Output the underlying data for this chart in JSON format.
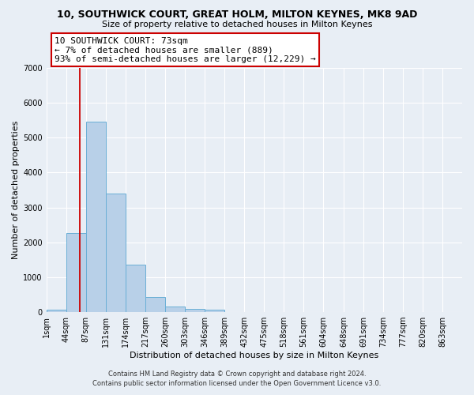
{
  "title_line1": "10, SOUTHWICK COURT, GREAT HOLM, MILTON KEYNES, MK8 9AD",
  "title_line2": "Size of property relative to detached houses in Milton Keynes",
  "xlabel": "Distribution of detached houses by size in Milton Keynes",
  "ylabel": "Number of detached properties",
  "bin_labels": [
    "1sqm",
    "44sqm",
    "87sqm",
    "131sqm",
    "174sqm",
    "217sqm",
    "260sqm",
    "303sqm",
    "346sqm",
    "389sqm",
    "432sqm",
    "475sqm",
    "518sqm",
    "561sqm",
    "604sqm",
    "648sqm",
    "691sqm",
    "734sqm",
    "777sqm",
    "820sqm",
    "863sqm"
  ],
  "bin_edges": [
    1,
    44,
    87,
    131,
    174,
    217,
    260,
    303,
    346,
    389,
    432,
    475,
    518,
    561,
    604,
    648,
    691,
    734,
    777,
    820,
    863
  ],
  "bar_values": [
    70,
    2270,
    5460,
    3400,
    1360,
    440,
    170,
    100,
    60,
    0,
    0,
    0,
    0,
    0,
    0,
    0,
    0,
    0,
    0,
    0
  ],
  "bar_color": "#b8d0e8",
  "bar_edge_color": "#6aafd6",
  "property_line_x": 73,
  "property_line_color": "#cc0000",
  "annotation_text": "10 SOUTHWICK COURT: 73sqm\n← 7% of detached houses are smaller (889)\n93% of semi-detached houses are larger (12,229) →",
  "annotation_box_color": "#ffffff",
  "annotation_box_edge": "#cc0000",
  "ylim": [
    0,
    7000
  ],
  "yticks": [
    0,
    1000,
    2000,
    3000,
    4000,
    5000,
    6000,
    7000
  ],
  "footer_line1": "Contains HM Land Registry data © Crown copyright and database right 2024.",
  "footer_line2": "Contains public sector information licensed under the Open Government Licence v3.0.",
  "bg_color": "#e8eef5",
  "plot_bg_color": "#e8eef5",
  "grid_color": "#ffffff",
  "title1_fontsize": 9,
  "title2_fontsize": 8,
  "annotation_fontsize": 8,
  "ylabel_fontsize": 8,
  "xlabel_fontsize": 8,
  "tick_fontsize": 7,
  "footer_fontsize": 6
}
